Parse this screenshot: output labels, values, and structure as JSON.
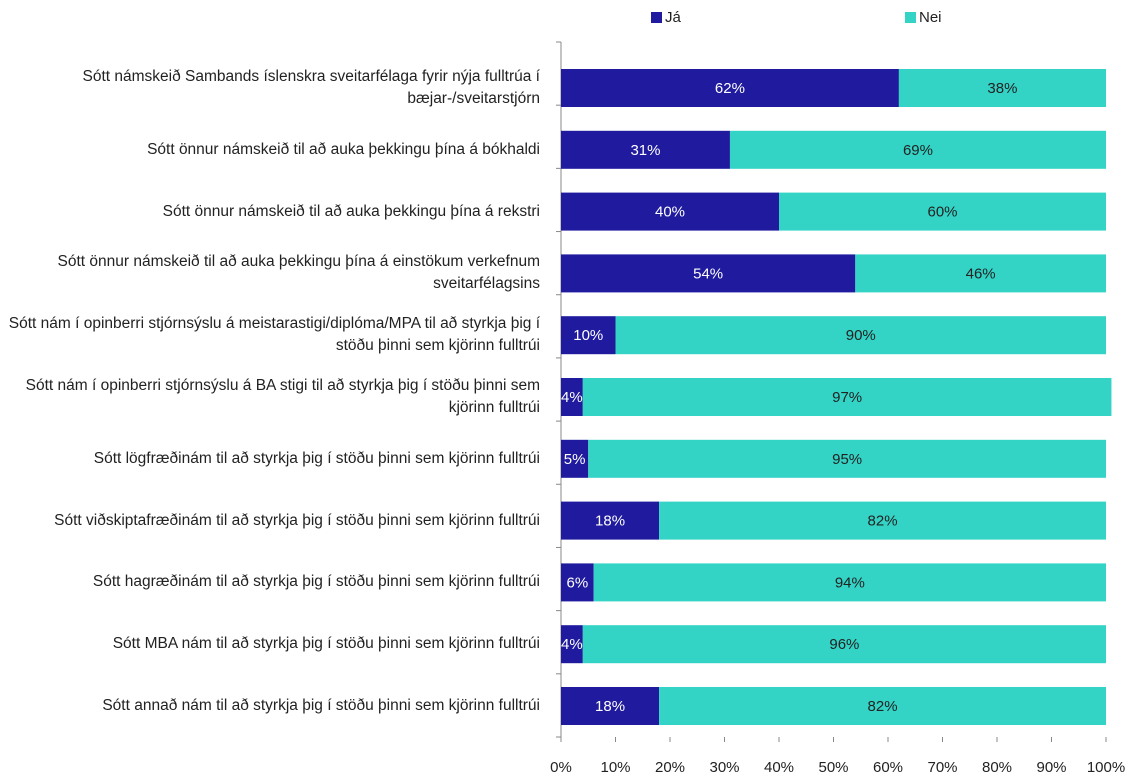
{
  "chart_data": {
    "type": "stacked-bar-horizontal",
    "categories": [
      "Sótt námskeið Sambands íslenskra sveitarfélaga fyrir nýja fulltrúa í bæjar-/sveitarstjórn",
      "Sótt önnur námskeið til að auka þekkingu þína á bókhaldi",
      "Sótt önnur námskeið til að auka þekkingu þína á rekstri",
      "Sótt önnur námskeið til að auka þekkingu þína á einstökum verkefnum sveitarfélagsins",
      "Sótt nám í opinberri stjórnsýslu á meistarastigi/diplóma/MPA til að styrkja þig í stöðu þinni sem kjörinn fulltrúi",
      "Sótt nám í opinberri stjórnsýslu á BA stigi til að styrkja þig í stöðu þinni sem kjörinn fulltrúi",
      "Sótt lögfræðinám til að styrkja þig í stöðu þinni sem kjörinn fulltrúi",
      "Sótt viðskiptafræðinám til að styrkja þig í stöðu þinni sem kjörinn fulltrúi",
      "Sótt hagræðinám til að styrkja þig í stöðu þinni sem kjörinn fulltrúi",
      "Sótt MBA nám til að styrkja þig í stöðu þinni sem kjörinn fulltrúi",
      "Sótt annað nám til að styrkja þig í stöðu þinni sem kjörinn fulltrúi"
    ],
    "series": [
      {
        "name": "Já",
        "color": "#1f1a9e",
        "values": [
          62,
          31,
          40,
          54,
          10,
          4,
          5,
          18,
          6,
          4,
          18
        ],
        "value_labels": [
          "62%",
          "31%",
          "40%",
          "54%",
          "10%",
          "4%",
          "5%",
          "18%",
          "6%",
          "4%",
          "18%"
        ]
      },
      {
        "name": "Nei",
        "color": "#33d4c6",
        "values": [
          38,
          69,
          60,
          46,
          90,
          97,
          95,
          82,
          94,
          96,
          82
        ],
        "value_labels": [
          "38%",
          "69%",
          "60%",
          "46%",
          "90%",
          "97%",
          "95%",
          "82%",
          "94%",
          "96%",
          "82%"
        ]
      }
    ],
    "xlim": [
      0,
      100
    ],
    "xticks": [
      {
        "value": 0,
        "label": "0%"
      },
      {
        "value": 10,
        "label": "10%"
      },
      {
        "value": 20,
        "label": "20%"
      },
      {
        "value": 30,
        "label": "30%"
      },
      {
        "value": 40,
        "label": "40%"
      },
      {
        "value": 50,
        "label": "50%"
      },
      {
        "value": 60,
        "label": "60%"
      },
      {
        "value": 70,
        "label": "70%"
      },
      {
        "value": 80,
        "label": "80%"
      },
      {
        "value": 90,
        "label": "90%"
      },
      {
        "value": 100,
        "label": "100%"
      }
    ],
    "legend": "top"
  }
}
